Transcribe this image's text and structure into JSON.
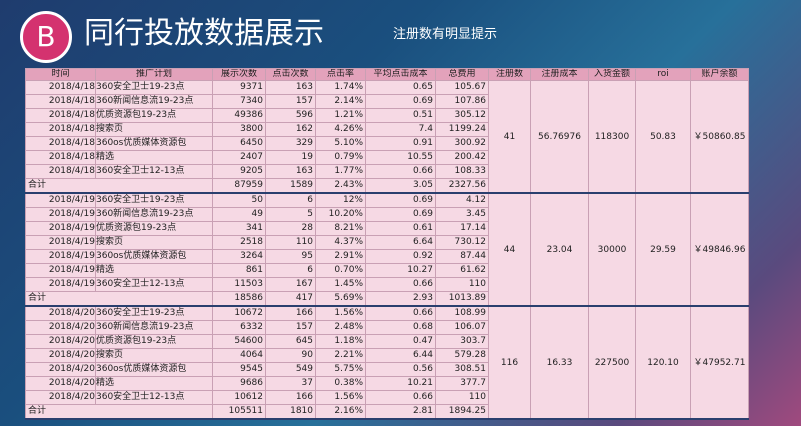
{
  "header": {
    "badge": "B",
    "title": "同行投放数据展示",
    "subtitle": "注册数有明显提示"
  },
  "table": {
    "columns": [
      "时间",
      "推广计划",
      "展示次数",
      "点击次数",
      "点击率",
      "平均点击成本",
      "总费用",
      "注册数",
      "注册成本",
      "入货金额",
      "roi",
      "账户余额"
    ],
    "groups": [
      {
        "rows": [
          [
            "2018/4/18",
            "360安全卫士19-23点",
            "9371",
            "163",
            "1.74%",
            "0.65",
            "105.67"
          ],
          [
            "2018/4/18",
            "360新闻信息流19-23点",
            "7340",
            "157",
            "2.14%",
            "0.69",
            "107.86"
          ],
          [
            "2018/4/18",
            "优质资源包19-23点",
            "49386",
            "596",
            "1.21%",
            "0.51",
            "305.12"
          ],
          [
            "2018/4/18",
            "搜索页",
            "3800",
            "162",
            "4.26%",
            "7.4",
            "1199.24"
          ],
          [
            "2018/4/18",
            "360os优质媒体资源包",
            "6450",
            "329",
            "5.10%",
            "0.91",
            "300.92"
          ],
          [
            "2018/4/18",
            "精选",
            "2407",
            "19",
            "0.79%",
            "10.55",
            "200.42"
          ],
          [
            "2018/4/18",
            "360安全卫士12-13点",
            "9205",
            "163",
            "1.77%",
            "0.66",
            "108.33"
          ]
        ],
        "total": [
          "合计",
          "87959",
          "1589",
          "2.43%",
          "3.05",
          "2327.56"
        ],
        "summary": [
          "41",
          "56.76976",
          "118300",
          "50.83",
          "￥50860.85"
        ]
      },
      {
        "rows": [
          [
            "2018/4/19",
            "360安全卫士19-23点",
            "50",
            "6",
            "12%",
            "0.69",
            "4.12"
          ],
          [
            "2018/4/19",
            "360新闻信息流19-23点",
            "49",
            "5",
            "10.20%",
            "0.69",
            "3.45"
          ],
          [
            "2018/4/19",
            "优质资源包19-23点",
            "341",
            "28",
            "8.21%",
            "0.61",
            "17.14"
          ],
          [
            "2018/4/19",
            "搜索页",
            "2518",
            "110",
            "4.37%",
            "6.64",
            "730.12"
          ],
          [
            "2018/4/19",
            "360os优质媒体资源包",
            "3264",
            "95",
            "2.91%",
            "0.92",
            "87.44"
          ],
          [
            "2018/4/19",
            "精选",
            "861",
            "6",
            "0.70%",
            "10.27",
            "61.62"
          ],
          [
            "2018/4/19",
            "360安全卫士12-13点",
            "11503",
            "167",
            "1.45%",
            "0.66",
            "110"
          ]
        ],
        "total": [
          "合计",
          "18586",
          "417",
          "5.69%",
          "2.93",
          "1013.89"
        ],
        "summary": [
          "44",
          "23.04",
          "30000",
          "29.59",
          "￥49846.96"
        ]
      },
      {
        "rows": [
          [
            "2018/4/20",
            "360安全卫士19-23点",
            "10672",
            "166",
            "1.56%",
            "0.66",
            "108.99"
          ],
          [
            "2018/4/20",
            "360新闻信息流19-23点",
            "6332",
            "157",
            "2.48%",
            "0.68",
            "106.07"
          ],
          [
            "2018/4/20",
            "优质资源包19-23点",
            "54600",
            "645",
            "1.18%",
            "0.47",
            "303.7"
          ],
          [
            "2018/4/20",
            "搜索页",
            "4064",
            "90",
            "2.21%",
            "6.44",
            "579.28"
          ],
          [
            "2018/4/20",
            "360os优质媒体资源包",
            "9545",
            "549",
            "5.75%",
            "0.56",
            "308.51"
          ],
          [
            "2018/4/20",
            "精选",
            "9686",
            "37",
            "0.38%",
            "10.21",
            "377.7"
          ],
          [
            "2018/4/20",
            "360安全卫士12-13点",
            "10612",
            "166",
            "1.56%",
            "0.66",
            "110"
          ]
        ],
        "total": [
          "合计",
          "105511",
          "1810",
          "2.16%",
          "2.81",
          "1894.25"
        ],
        "summary": [
          "116",
          "16.33",
          "227500",
          "120.10",
          "￥47952.71"
        ]
      }
    ]
  }
}
